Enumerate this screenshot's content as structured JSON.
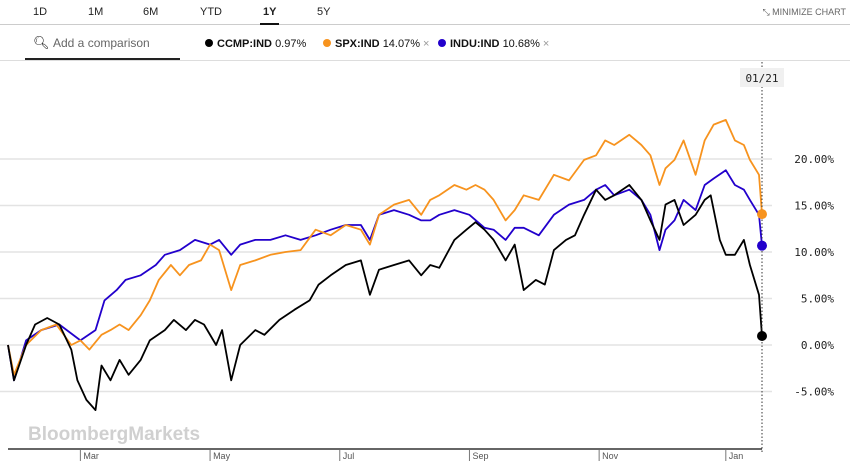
{
  "ranges": [
    {
      "label": "1D",
      "active": false
    },
    {
      "label": "1M",
      "active": false
    },
    {
      "label": "6M",
      "active": false
    },
    {
      "label": "YTD",
      "active": false
    },
    {
      "label": "1Y",
      "active": true
    },
    {
      "label": "5Y",
      "active": false
    }
  ],
  "minimize_label": "MINIMIZE CHART",
  "search": {
    "placeholder": "Add a comparison",
    "icon": "search-icon"
  },
  "legend": [
    {
      "name": "CCMP:IND",
      "change": "0.97%",
      "color": "#000000",
      "removable": false
    },
    {
      "name": "SPX:IND",
      "change": "14.07%",
      "color": "#f7931e",
      "removable": true
    },
    {
      "name": "INDU:IND",
      "change": "10.68%",
      "color": "#2200cc",
      "removable": true
    }
  ],
  "remove_glyph": "×",
  "watermark": "BloombergMarkets",
  "cursor_label": "01/21",
  "chart_data": {
    "type": "line",
    "title": "",
    "xlabel": "",
    "ylabel": "",
    "x_domain_days": [
      0,
      250
    ],
    "ylim": [
      -10.5,
      30
    ],
    "y_ticks": [
      -5,
      0,
      5,
      10,
      15,
      20
    ],
    "y_tick_labels": [
      "-5.00%",
      "0.00%",
      "5.00%",
      "10.00%",
      "15.00%",
      "20.00%"
    ],
    "x_ticks": [
      {
        "day": 24,
        "label": "Mar"
      },
      {
        "day": 67,
        "label": "May"
      },
      {
        "day": 110,
        "label": "Jul"
      },
      {
        "day": 153,
        "label": "Sep"
      },
      {
        "day": 196,
        "label": "Nov"
      },
      {
        "day": 238,
        "label": "Jan"
      }
    ],
    "grid": true,
    "series": [
      {
        "name": "CCMP:IND",
        "color": "#000000",
        "last": 0.97,
        "points": [
          [
            0,
            0
          ],
          [
            2,
            -3.8
          ],
          [
            6,
            0
          ],
          [
            9,
            2.2
          ],
          [
            13,
            2.9
          ],
          [
            17,
            2.2
          ],
          [
            21,
            -0.5
          ],
          [
            23,
            -3.8
          ],
          [
            26,
            -5.9
          ],
          [
            29,
            -7.0
          ],
          [
            31,
            -2.2
          ],
          [
            34,
            -3.8
          ],
          [
            37,
            -1.6
          ],
          [
            40,
            -3.2
          ],
          [
            44,
            -1.6
          ],
          [
            47,
            0.5
          ],
          [
            52,
            1.6
          ],
          [
            55,
            2.7
          ],
          [
            59,
            1.6
          ],
          [
            62,
            2.7
          ],
          [
            65,
            2.2
          ],
          [
            69,
            0
          ],
          [
            71,
            1.6
          ],
          [
            74,
            -3.8
          ],
          [
            77,
            0
          ],
          [
            82,
            1.6
          ],
          [
            85,
            1.1
          ],
          [
            90,
            2.7
          ],
          [
            95,
            3.8
          ],
          [
            100,
            4.8
          ],
          [
            103,
            6.5
          ],
          [
            107,
            7.5
          ],
          [
            112,
            8.6
          ],
          [
            117,
            9.1
          ],
          [
            120,
            5.4
          ],
          [
            123,
            8.1
          ],
          [
            128,
            8.6
          ],
          [
            133,
            9.1
          ],
          [
            137,
            7.5
          ],
          [
            140,
            8.6
          ],
          [
            143,
            8.3
          ],
          [
            148,
            11.3
          ],
          [
            152,
            12.4
          ],
          [
            155,
            13.2
          ],
          [
            158,
            12.4
          ],
          [
            161,
            11.3
          ],
          [
            165,
            9.1
          ],
          [
            168,
            10.8
          ],
          [
            171,
            5.9
          ],
          [
            175,
            7.0
          ],
          [
            178,
            6.5
          ],
          [
            181,
            10.2
          ],
          [
            185,
            11.3
          ],
          [
            188,
            11.8
          ],
          [
            191,
            14.0
          ],
          [
            195,
            16.7
          ],
          [
            198,
            15.6
          ],
          [
            201,
            16.1
          ],
          [
            206,
            17.2
          ],
          [
            210,
            15.6
          ],
          [
            213,
            13.4
          ],
          [
            216,
            11.3
          ],
          [
            218,
            15.1
          ],
          [
            221,
            15.6
          ],
          [
            224,
            12.9
          ],
          [
            228,
            14.0
          ],
          [
            231,
            15.6
          ],
          [
            233,
            16.1
          ],
          [
            236,
            11.3
          ],
          [
            238,
            9.7
          ],
          [
            241,
            9.7
          ],
          [
            244,
            11.3
          ],
          [
            246,
            8.6
          ],
          [
            249,
            5.4
          ],
          [
            250,
            0.97
          ]
        ]
      },
      {
        "name": "SPX:IND",
        "color": "#f7931e",
        "last": 14.07,
        "points": [
          [
            0,
            0
          ],
          [
            2,
            -3.2
          ],
          [
            6,
            0
          ],
          [
            11,
            1.6
          ],
          [
            16,
            2.2
          ],
          [
            21,
            0
          ],
          [
            24,
            0.5
          ],
          [
            27,
            -0.5
          ],
          [
            31,
            1.1
          ],
          [
            34,
            1.6
          ],
          [
            37,
            2.2
          ],
          [
            40,
            1.6
          ],
          [
            44,
            3.2
          ],
          [
            47,
            4.8
          ],
          [
            50,
            7.0
          ],
          [
            54,
            8.6
          ],
          [
            57,
            7.5
          ],
          [
            60,
            8.6
          ],
          [
            64,
            9.1
          ],
          [
            67,
            10.8
          ],
          [
            70,
            10.2
          ],
          [
            74,
            5.9
          ],
          [
            77,
            8.6
          ],
          [
            82,
            9.1
          ],
          [
            87,
            9.7
          ],
          [
            92,
            10.0
          ],
          [
            97,
            10.2
          ],
          [
            102,
            12.4
          ],
          [
            107,
            11.8
          ],
          [
            112,
            12.9
          ],
          [
            117,
            12.4
          ],
          [
            120,
            10.8
          ],
          [
            123,
            14.0
          ],
          [
            128,
            15.1
          ],
          [
            133,
            15.6
          ],
          [
            137,
            14.0
          ],
          [
            140,
            15.6
          ],
          [
            143,
            16.1
          ],
          [
            148,
            17.2
          ],
          [
            152,
            16.7
          ],
          [
            155,
            17.2
          ],
          [
            158,
            16.7
          ],
          [
            161,
            15.6
          ],
          [
            165,
            13.4
          ],
          [
            168,
            14.5
          ],
          [
            171,
            16.1
          ],
          [
            176,
            15.6
          ],
          [
            181,
            18.3
          ],
          [
            186,
            17.7
          ],
          [
            191,
            19.9
          ],
          [
            195,
            20.4
          ],
          [
            198,
            22.0
          ],
          [
            201,
            21.5
          ],
          [
            206,
            22.6
          ],
          [
            210,
            21.5
          ],
          [
            213,
            20.4
          ],
          [
            216,
            17.2
          ],
          [
            218,
            19.0
          ],
          [
            221,
            19.9
          ],
          [
            224,
            22.0
          ],
          [
            228,
            18.3
          ],
          [
            231,
            22.0
          ],
          [
            234,
            23.7
          ],
          [
            238,
            24.2
          ],
          [
            241,
            22.0
          ],
          [
            244,
            21.5
          ],
          [
            246,
            19.9
          ],
          [
            249,
            18.3
          ],
          [
            250,
            14.07
          ]
        ]
      },
      {
        "name": "INDU:IND",
        "color": "#2200cc",
        "last": 10.68,
        "points": [
          [
            0,
            0
          ],
          [
            2,
            -3.8
          ],
          [
            6,
            0.5
          ],
          [
            11,
            1.6
          ],
          [
            17,
            2.2
          ],
          [
            24,
            0.5
          ],
          [
            29,
            1.6
          ],
          [
            32,
            4.8
          ],
          [
            36,
            5.9
          ],
          [
            39,
            7.0
          ],
          [
            44,
            7.5
          ],
          [
            49,
            8.6
          ],
          [
            52,
            9.7
          ],
          [
            57,
            10.2
          ],
          [
            62,
            11.3
          ],
          [
            67,
            10.8
          ],
          [
            70,
            11.3
          ],
          [
            74,
            9.7
          ],
          [
            77,
            10.8
          ],
          [
            82,
            11.3
          ],
          [
            87,
            11.3
          ],
          [
            92,
            11.8
          ],
          [
            97,
            11.3
          ],
          [
            102,
            11.8
          ],
          [
            107,
            12.4
          ],
          [
            112,
            12.9
          ],
          [
            117,
            12.9
          ],
          [
            120,
            11.3
          ],
          [
            123,
            14.0
          ],
          [
            128,
            14.5
          ],
          [
            133,
            14.0
          ],
          [
            137,
            13.4
          ],
          [
            140,
            13.4
          ],
          [
            143,
            14.0
          ],
          [
            148,
            14.5
          ],
          [
            153,
            14.0
          ],
          [
            158,
            12.6
          ],
          [
            161,
            12.4
          ],
          [
            165,
            11.3
          ],
          [
            168,
            12.6
          ],
          [
            171,
            12.6
          ],
          [
            176,
            11.8
          ],
          [
            181,
            14.0
          ],
          [
            186,
            15.1
          ],
          [
            191,
            15.6
          ],
          [
            195,
            16.7
          ],
          [
            198,
            17.2
          ],
          [
            201,
            16.1
          ],
          [
            206,
            16.7
          ],
          [
            210,
            15.6
          ],
          [
            213,
            14.0
          ],
          [
            216,
            10.2
          ],
          [
            218,
            12.4
          ],
          [
            221,
            13.4
          ],
          [
            224,
            15.6
          ],
          [
            228,
            14.5
          ],
          [
            231,
            17.2
          ],
          [
            234,
            17.9
          ],
          [
            238,
            18.8
          ],
          [
            241,
            17.2
          ],
          [
            244,
            16.7
          ],
          [
            246,
            15.6
          ],
          [
            249,
            14.0
          ],
          [
            250,
            10.68
          ]
        ]
      }
    ]
  }
}
